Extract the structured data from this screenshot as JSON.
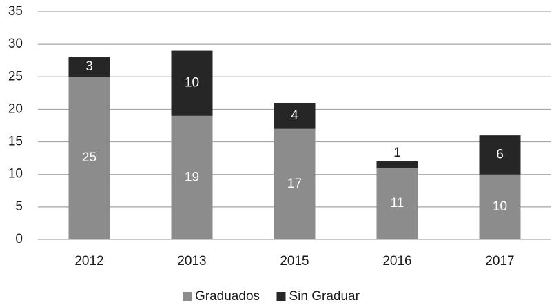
{
  "chart_data": {
    "type": "stacked_bar",
    "categories": [
      "2012",
      "2013",
      "2015",
      "2016",
      "2017"
    ],
    "series": [
      {
        "name": "Graduados",
        "color": "#8c8c8c",
        "values": [
          25,
          19,
          17,
          11,
          10
        ]
      },
      {
        "name": "Sin Graduar",
        "color": "#262626",
        "values": [
          3,
          10,
          4,
          1,
          6
        ]
      }
    ],
    "ylim": [
      0,
      35
    ],
    "yticks": [
      0,
      5,
      10,
      15,
      20,
      25,
      30,
      35
    ],
    "grid": true,
    "legend": "bottom"
  }
}
